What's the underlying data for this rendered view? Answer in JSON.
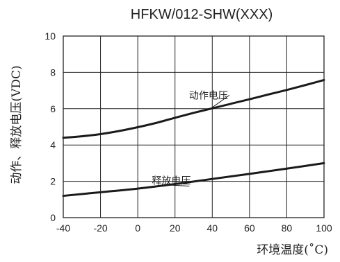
{
  "chart_data": {
    "type": "line",
    "title": "HFKW/012-SHW(XXX)",
    "xlabel": "环境温度(˚C)",
    "ylabel": "动作、释放电压(VDC)",
    "xlim": [
      -40,
      100
    ],
    "ylim": [
      0,
      10
    ],
    "xticks": [
      -40,
      -20,
      0,
      20,
      40,
      60,
      80,
      100
    ],
    "yticks": [
      0,
      2,
      4,
      6,
      8,
      10
    ],
    "grid": true,
    "series": [
      {
        "name": "动作电压",
        "x": [
          -40,
          -30,
          -20,
          -10,
          0,
          10,
          20,
          30,
          40,
          50,
          60,
          70,
          80,
          90,
          100
        ],
        "y": [
          4.4,
          4.48,
          4.6,
          4.77,
          4.98,
          5.22,
          5.5,
          5.77,
          6.02,
          6.27,
          6.52,
          6.78,
          7.03,
          7.3,
          7.58
        ],
        "label_at": {
          "x": 38,
          "y": 6.55
        }
      },
      {
        "name": "释放电压",
        "x": [
          -40,
          -20,
          0,
          20,
          40,
          60,
          80,
          100
        ],
        "y": [
          1.2,
          1.4,
          1.6,
          1.85,
          2.13,
          2.41,
          2.7,
          3.0
        ],
        "label_at": {
          "x": 18,
          "y": 1.85
        }
      }
    ],
    "colors": {
      "line": "#1a1a1a",
      "grid": "#222222",
      "frame": "#222222",
      "text": "#222222"
    }
  }
}
